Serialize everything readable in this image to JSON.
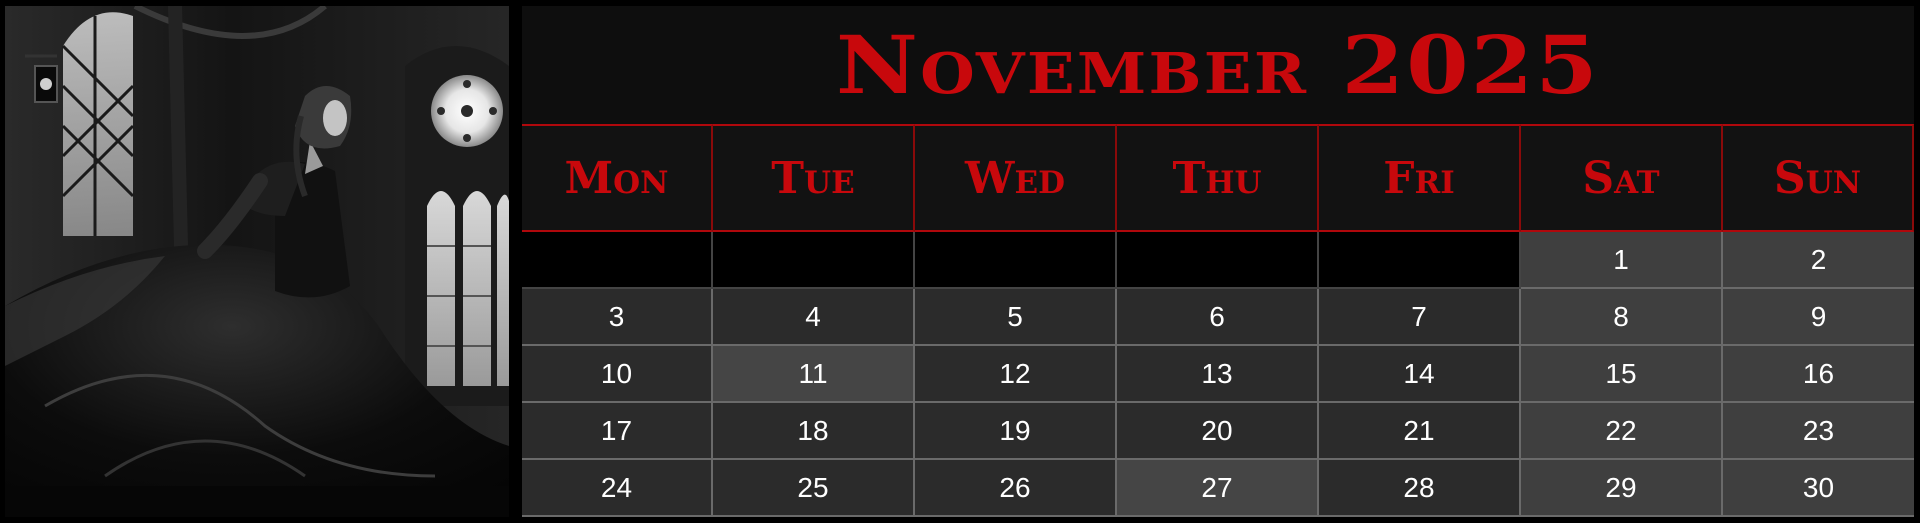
{
  "calendar": {
    "title": "November 2025",
    "weekdays": [
      "Mon",
      "Tue",
      "Wed",
      "Thu",
      "Fri",
      "Sat",
      "Sun"
    ],
    "days": [
      "",
      "",
      "",
      "",
      "",
      "1",
      "2",
      "3",
      "4",
      "5",
      "6",
      "7",
      "8",
      "9",
      "10",
      "11",
      "12",
      "13",
      "14",
      "15",
      "16",
      "17",
      "18",
      "19",
      "20",
      "21",
      "22",
      "23",
      "24",
      "25",
      "26",
      "27",
      "28",
      "29",
      "30"
    ],
    "highlighted_days": [
      "11",
      "27"
    ]
  },
  "colors": {
    "accent": "#c8080c",
    "background": "#000000",
    "cell": "#2b2b2b",
    "weekend_cell": "#3f3f3f",
    "highlight_cell": "#454545"
  },
  "illustration": {
    "subject": "woman in dark gown by gothic stained-glass window",
    "style": "black-and-white"
  }
}
